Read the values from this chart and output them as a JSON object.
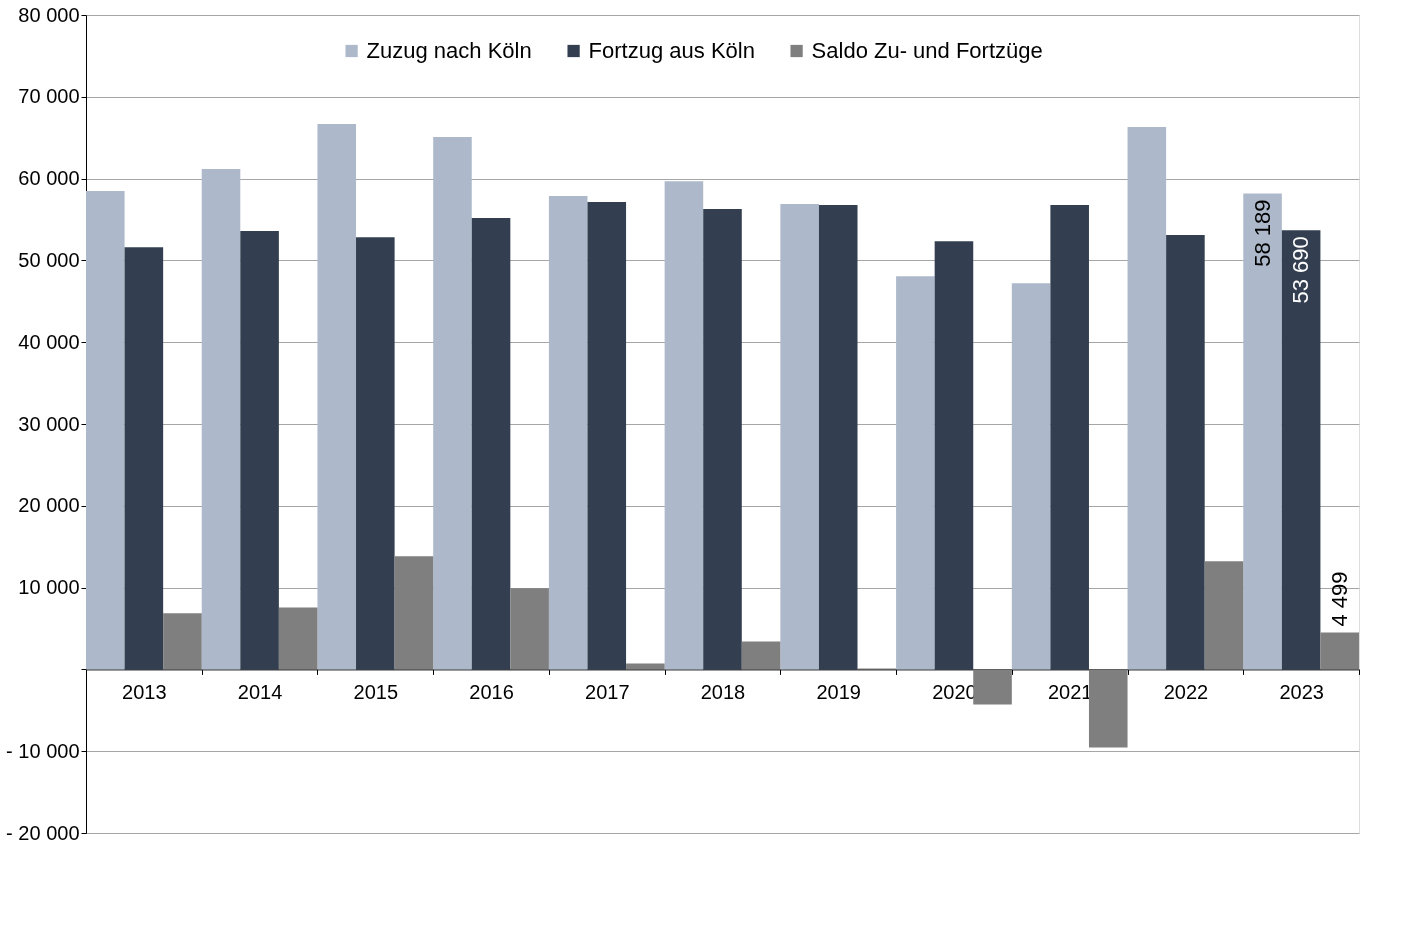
{
  "chart_data": {
    "type": "bar",
    "categories": [
      "2013",
      "2014",
      "2015",
      "2016",
      "2017",
      "2018",
      "2019",
      "2020",
      "2021",
      "2022",
      "2023"
    ],
    "series": [
      {
        "name": "Zuzug nach Köln",
        "color": "#adb9ca",
        "values": [
          58470,
          61160,
          66670,
          65080,
          57860,
          59690,
          56880,
          48070,
          47220,
          66300,
          58189
        ],
        "value_labels": [
          null,
          null,
          null,
          null,
          null,
          null,
          null,
          null,
          null,
          null,
          "58 189"
        ]
      },
      {
        "name": "Fortzug aus Köln",
        "color": "#333f50",
        "values": [
          51620,
          53580,
          52840,
          55170,
          57130,
          56270,
          56760,
          52350,
          56760,
          53090,
          53690
        ],
        "value_labels": [
          null,
          null,
          null,
          null,
          null,
          null,
          null,
          null,
          null,
          null,
          "53 690"
        ]
      },
      {
        "name": "Saldo Zu- und Fortzüge",
        "color": "#7f7f7f",
        "values": [
          6850,
          7580,
          13830,
          9910,
          730,
          3420,
          120,
          -4280,
          -9540,
          13210,
          4499
        ],
        "value_labels": [
          null,
          null,
          null,
          null,
          null,
          null,
          null,
          null,
          null,
          null,
          "4 499"
        ]
      }
    ],
    "ylim": [
      -20000,
      80000
    ],
    "yticks": [
      {
        "value": -20000,
        "label": "- 20 000"
      },
      {
        "value": -10000,
        "label": "- 10 000"
      },
      {
        "value": 0,
        "label": null
      },
      {
        "value": 10000,
        "label": "10 000"
      },
      {
        "value": 20000,
        "label": "20 000"
      },
      {
        "value": 30000,
        "label": "30 000"
      },
      {
        "value": 40000,
        "label": "40 000"
      },
      {
        "value": 50000,
        "label": "50 000"
      },
      {
        "value": 60000,
        "label": "60 000"
      },
      {
        "value": 70000,
        "label": "70 000"
      },
      {
        "value": 80000,
        "label": "80 000"
      }
    ],
    "grid": "y",
    "legend": "top"
  }
}
